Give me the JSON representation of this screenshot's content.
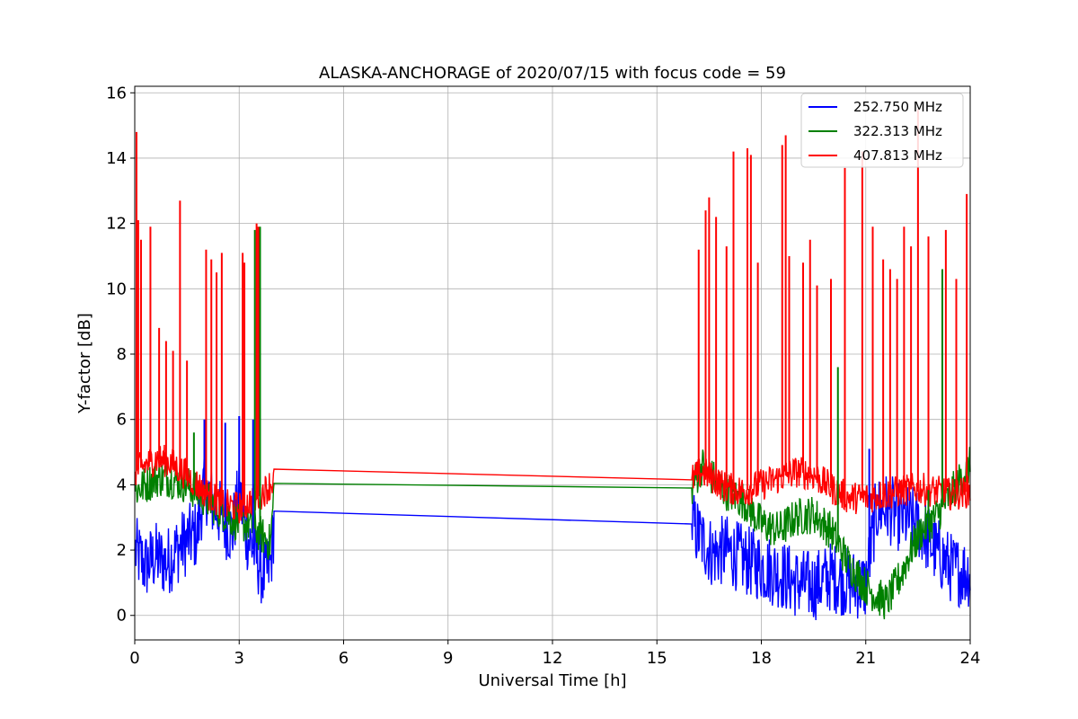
{
  "chart_data": {
    "type": "line",
    "title": "ALASKA-ANCHORAGE of 2020/07/15 with focus code = 59",
    "xlabel": "Universal Time [h]",
    "ylabel": "Y-factor [dB]",
    "xlim": [
      0,
      24
    ],
    "ylim": [
      -0.75,
      16.2
    ],
    "xticks": [
      0,
      3,
      6,
      9,
      12,
      15,
      18,
      21,
      24
    ],
    "yticks": [
      0,
      2,
      4,
      6,
      8,
      10,
      12,
      14,
      16
    ],
    "grid": true,
    "legend_position": "top-right",
    "series": [
      {
        "name": "252.750 MHz",
        "color": "#0000ff",
        "x": [
          0,
          0.3,
          0.6,
          0.9,
          1.2,
          1.5,
          1.8,
          2.0,
          2.2,
          2.5,
          2.8,
          3.0,
          3.2,
          3.5,
          3.7,
          3.9,
          4.0,
          16.0,
          16.3,
          16.6,
          17.0,
          17.5,
          18.0,
          18.5,
          19.0,
          19.5,
          20.0,
          20.5,
          21.0,
          21.3,
          21.6,
          22.0,
          22.5,
          23.0,
          23.5,
          24.0
        ],
        "y": [
          2.0,
          1.5,
          1.8,
          1.6,
          2.0,
          2.3,
          2.5,
          4.0,
          3.5,
          3.0,
          2.5,
          3.8,
          2.5,
          1.8,
          1.2,
          1.5,
          2.85,
          2.8,
          2.3,
          1.9,
          2.0,
          1.7,
          1.5,
          1.3,
          1.0,
          0.9,
          1.2,
          1.0,
          0.9,
          3.2,
          3.3,
          3.0,
          2.8,
          2.0,
          1.4,
          1.3
        ]
      },
      {
        "name": "322.313 MHz",
        "color": "#008000",
        "x": [
          0,
          0.3,
          0.6,
          1.0,
          1.5,
          2.0,
          2.5,
          3.0,
          3.3,
          3.6,
          3.9,
          4.0,
          16.0,
          16.3,
          16.6,
          17.0,
          17.5,
          18.0,
          18.5,
          19.0,
          19.5,
          20.0,
          20.5,
          21.0,
          21.3,
          21.6,
          22.0,
          22.3,
          22.6,
          23.0,
          23.5,
          24.0
        ],
        "y": [
          3.8,
          4.0,
          4.2,
          4.2,
          4.0,
          3.6,
          3.2,
          2.8,
          2.8,
          2.5,
          2.2,
          3.85,
          3.9,
          4.6,
          4.2,
          3.8,
          3.5,
          2.8,
          2.6,
          3.0,
          3.1,
          2.6,
          1.6,
          0.9,
          0.6,
          0.4,
          1.2,
          2.0,
          2.6,
          3.0,
          3.8,
          4.6
        ]
      },
      {
        "name": "407.813 MHz",
        "color": "#ff0000",
        "x": [
          0,
          0.3,
          0.6,
          1.0,
          1.5,
          2.0,
          2.5,
          3.0,
          3.5,
          3.8,
          4.0,
          16.0,
          16.3,
          16.6,
          17.0,
          17.5,
          18.0,
          18.5,
          19.0,
          19.5,
          20.0,
          20.5,
          21.0,
          21.5,
          22.0,
          22.5,
          23.0,
          23.5,
          24.0
        ],
        "y": [
          4.4,
          4.6,
          4.8,
          4.7,
          4.3,
          3.8,
          3.4,
          3.3,
          3.6,
          3.9,
          4.15,
          4.15,
          4.4,
          4.2,
          3.9,
          3.8,
          4.0,
          4.2,
          4.4,
          4.3,
          3.9,
          3.6,
          3.6,
          3.7,
          3.8,
          3.9,
          3.8,
          3.7,
          3.8
        ]
      }
    ],
    "spikes": [
      {
        "series": 2,
        "x": [
          0.05,
          0.1,
          0.18,
          0.45,
          0.7,
          0.9,
          1.1,
          1.3,
          1.5,
          2.05,
          2.2,
          2.35,
          2.5,
          3.1,
          3.15,
          3.5,
          3.55,
          16.2,
          16.4,
          16.5,
          16.7,
          17.0,
          17.2,
          17.6,
          17.7,
          17.9,
          18.6,
          18.7,
          18.8,
          19.2,
          19.4,
          19.6,
          20.0,
          20.4,
          20.9,
          21.2,
          21.5,
          21.7,
          21.9,
          22.1,
          22.3,
          22.5,
          22.8,
          23.3,
          23.6,
          23.9
        ],
        "y": [
          14.8,
          12.1,
          11.5,
          11.9,
          8.8,
          8.4,
          8.1,
          12.7,
          7.8,
          11.2,
          10.9,
          10.5,
          11.1,
          11.1,
          10.8,
          12.0,
          11.9,
          11.2,
          12.4,
          12.8,
          12.2,
          11.3,
          14.2,
          14.3,
          14.1,
          10.8,
          14.4,
          14.7,
          11.0,
          10.8,
          11.5,
          10.1,
          10.3,
          13.7,
          14.2,
          11.9,
          10.9,
          10.6,
          10.3,
          11.9,
          11.3,
          15.5,
          11.6,
          11.8,
          10.3,
          12.9
        ]
      },
      {
        "series": 1,
        "x": [
          1.7,
          3.45,
          3.6,
          20.2,
          22.8,
          23.2
        ],
        "y": [
          5.6,
          11.8,
          11.9,
          7.6,
          8.2,
          10.6
        ]
      },
      {
        "series": 0,
        "x": [
          2.0,
          2.6,
          3.0,
          3.4,
          16.2,
          21.1
        ],
        "y": [
          6.0,
          5.9,
          6.1,
          6.0,
          3.2,
          5.1
        ]
      }
    ]
  }
}
